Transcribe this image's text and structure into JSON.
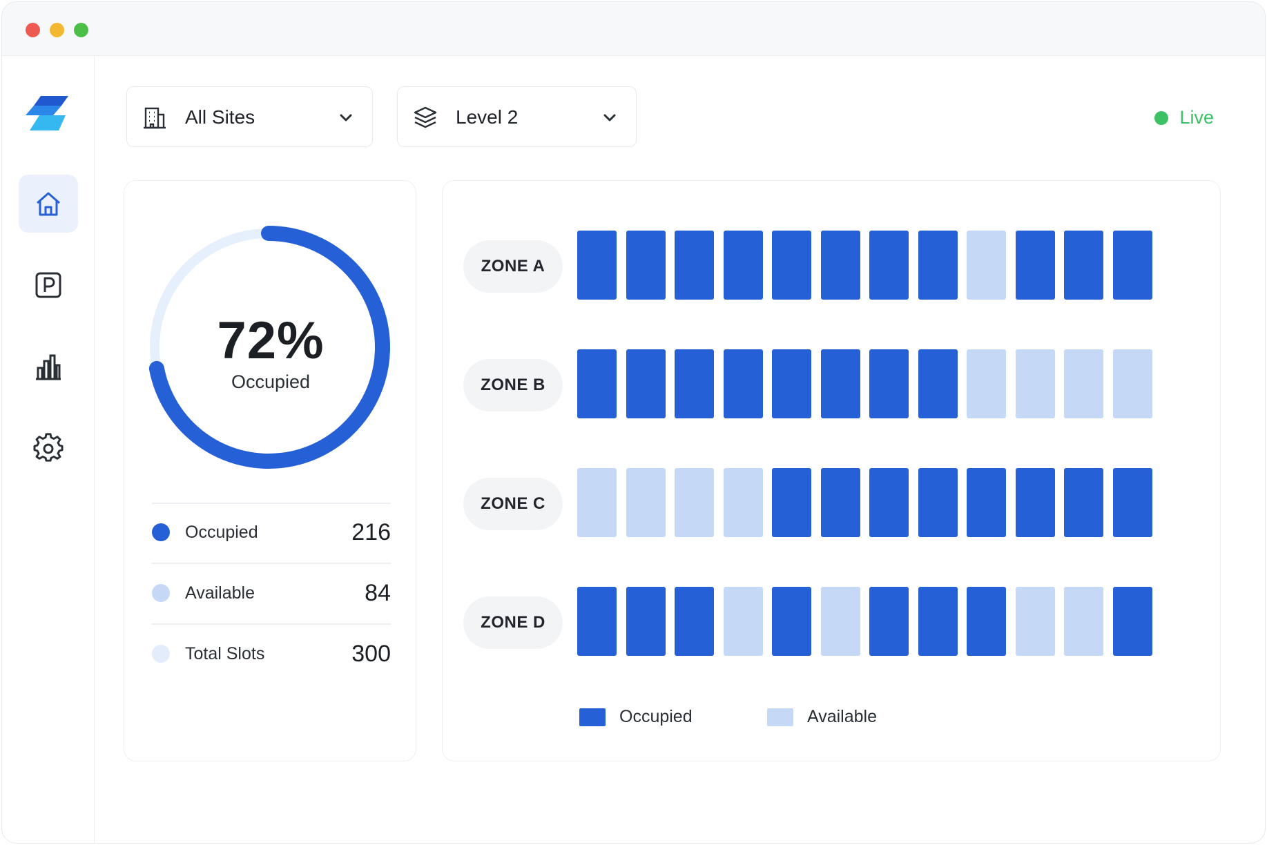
{
  "filters": {
    "site": {
      "label": "All Sites",
      "icon": "building-icon"
    },
    "level": {
      "label": "Level 2",
      "icon": "layers-icon"
    }
  },
  "status": {
    "label": "Live",
    "color": "#3cc265"
  },
  "sidebar": {
    "items": [
      {
        "name": "home",
        "icon": "home-icon",
        "active": true
      },
      {
        "name": "parking",
        "icon": "parking-icon",
        "active": false
      },
      {
        "name": "analytics",
        "icon": "bar-chart-icon",
        "active": false
      },
      {
        "name": "settings",
        "icon": "gear-icon",
        "active": false
      }
    ]
  },
  "summary": {
    "percent_label": "72%",
    "percent_value": 72,
    "sub_label": "Occupied",
    "stats": [
      {
        "label": "Occupied",
        "value": "216",
        "color": "#2660d6"
      },
      {
        "label": "Available",
        "value": "84",
        "color": "#c5d8f6"
      },
      {
        "label": "Total Slots",
        "value": "300",
        "color": "#e3ecfb"
      }
    ]
  },
  "zones": [
    {
      "label": "ZONE A",
      "slots": [
        1,
        1,
        1,
        1,
        1,
        1,
        1,
        1,
        0,
        1,
        1,
        1
      ]
    },
    {
      "label": "ZONE B",
      "slots": [
        1,
        1,
        1,
        1,
        1,
        1,
        1,
        1,
        0,
        0,
        0,
        0
      ]
    },
    {
      "label": "ZONE C",
      "slots": [
        0,
        0,
        0,
        0,
        1,
        1,
        1,
        1,
        1,
        1,
        1,
        1
      ]
    },
    {
      "label": "ZONE D",
      "slots": [
        1,
        1,
        1,
        0,
        1,
        0,
        1,
        1,
        1,
        0,
        0,
        1
      ]
    }
  ],
  "legend": [
    {
      "label": "Occupied",
      "color": "#2660d6"
    },
    {
      "label": "Available",
      "color": "#c5d8f6"
    }
  ],
  "colors": {
    "accent": "#2660d6",
    "available": "#c5d8f6",
    "donut_track": "#e6effc"
  }
}
